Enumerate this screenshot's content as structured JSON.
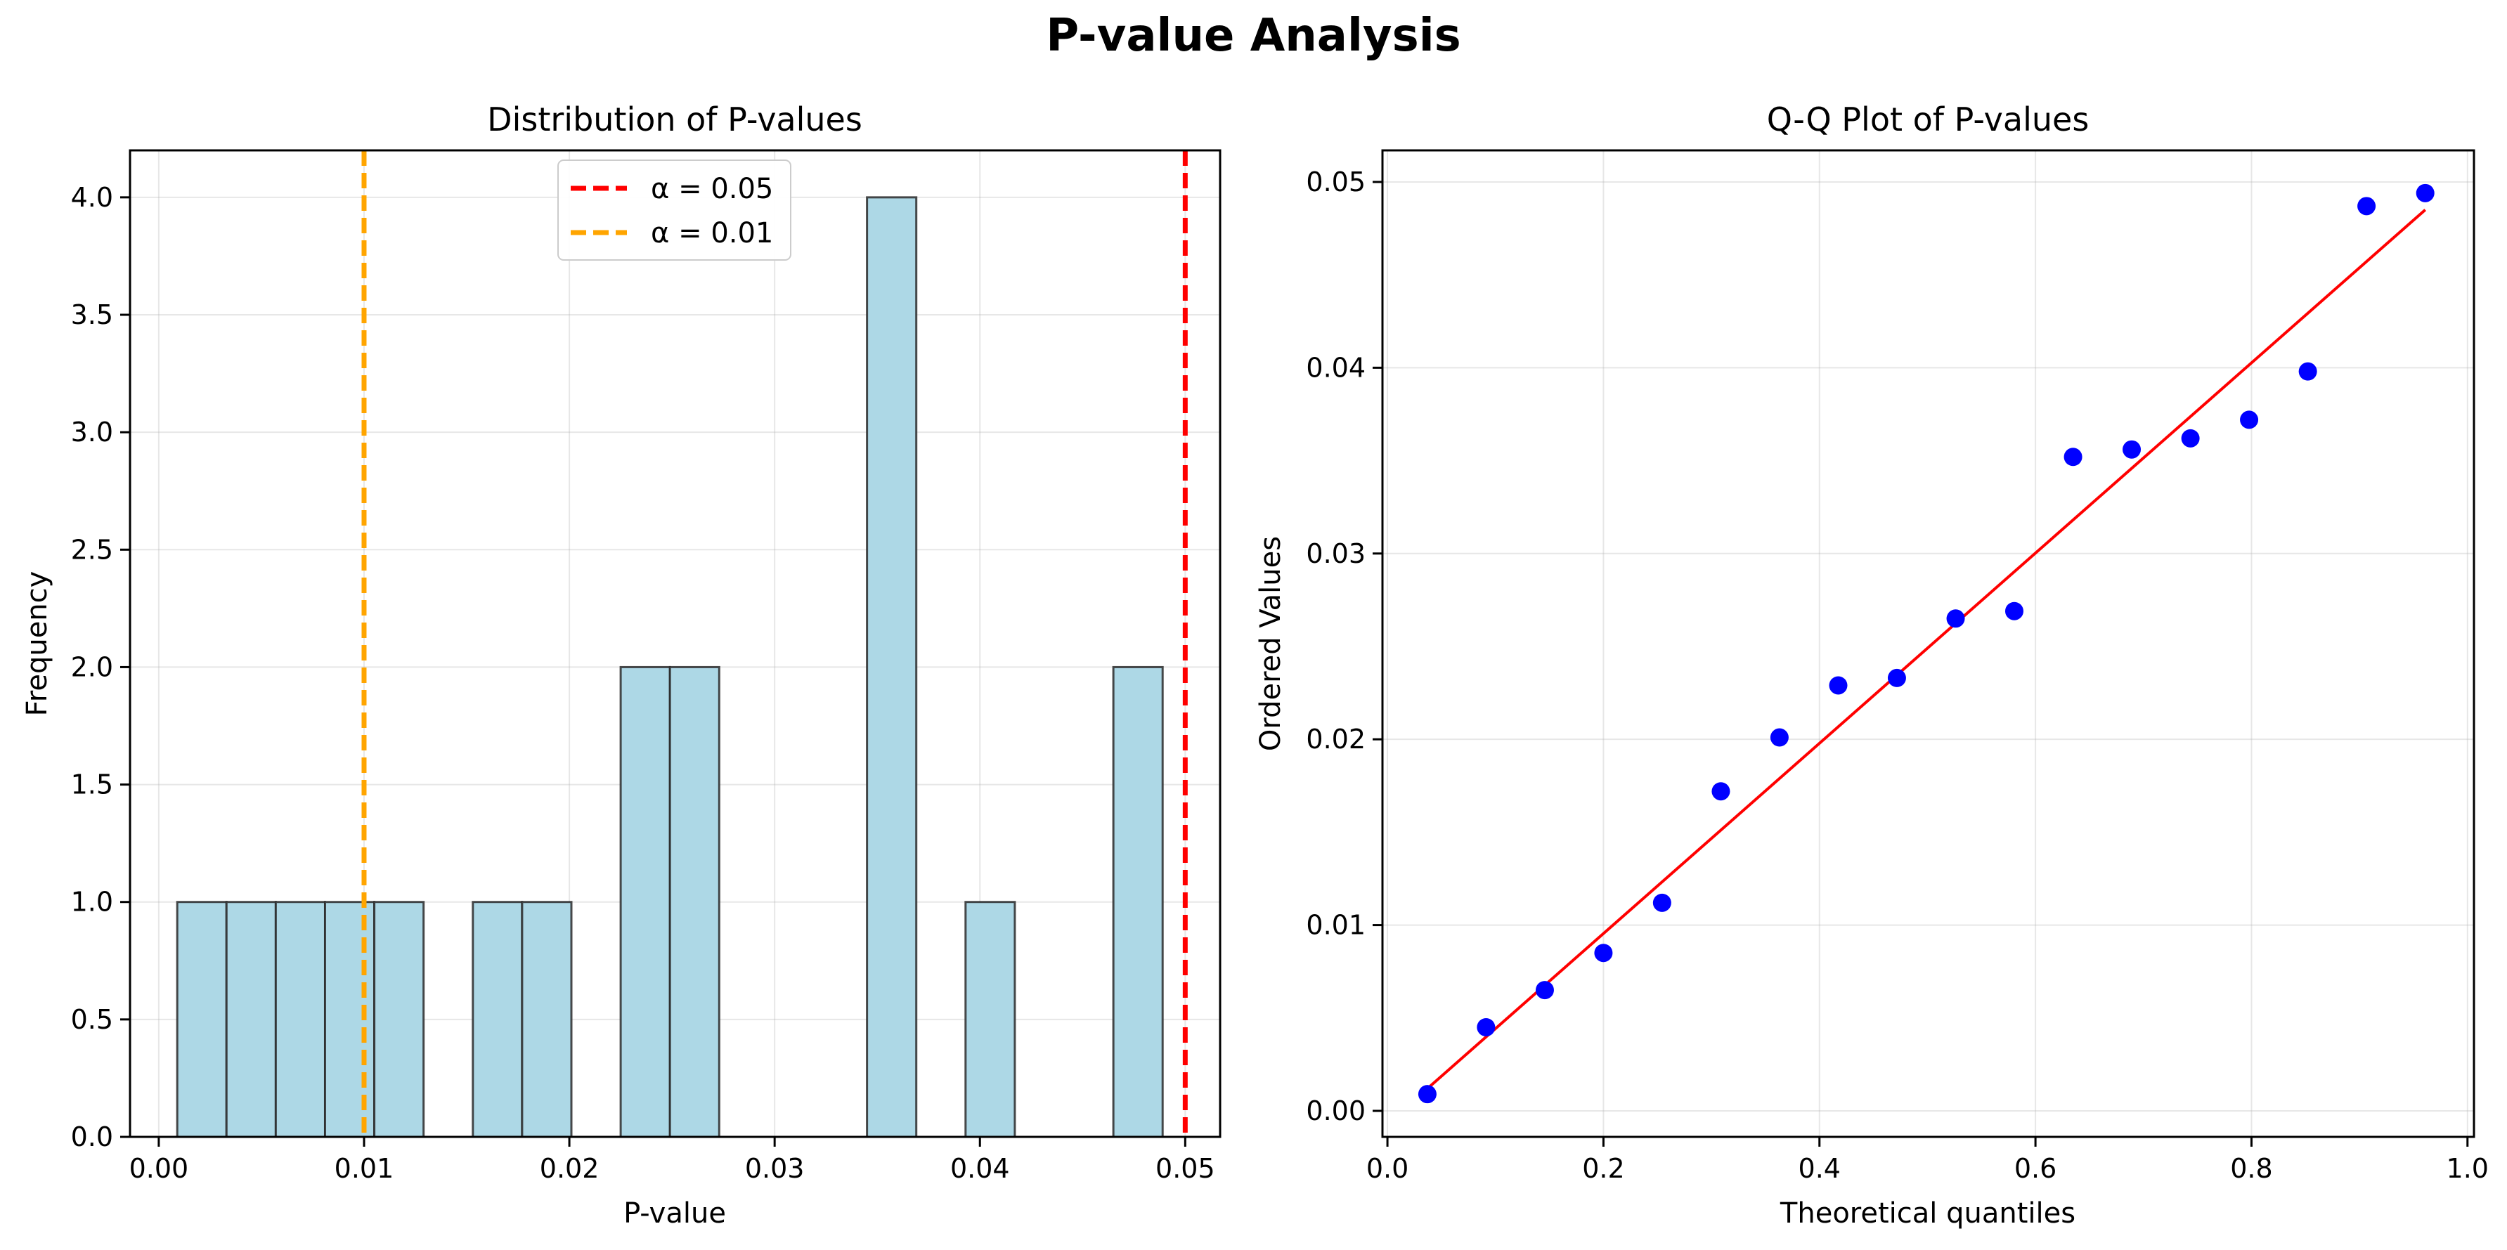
{
  "figure": {
    "title": "P-value Analysis"
  },
  "chart_data": [
    {
      "type": "bar",
      "subtype": "histogram",
      "title": "Distribution of P-values",
      "xlabel": "P-value",
      "ylabel": "Frequency",
      "xlim": [
        -0.0014,
        0.0517
      ],
      "ylim": [
        0,
        4.2
      ],
      "xticks": [
        0.0,
        0.01,
        0.02,
        0.03,
        0.04,
        0.05
      ],
      "xtick_labels": [
        "0.00",
        "0.01",
        "0.02",
        "0.03",
        "0.04",
        "0.05"
      ],
      "yticks": [
        0.0,
        0.5,
        1.0,
        1.5,
        2.0,
        2.5,
        3.0,
        3.5,
        4.0
      ],
      "ytick_labels": [
        "0.0",
        "0.5",
        "1.0",
        "1.5",
        "2.0",
        "2.5",
        "3.0",
        "3.5",
        "4.0"
      ],
      "bin_start": 0.0009,
      "bin_width": 0.0024,
      "values": [
        1,
        1,
        1,
        1,
        1,
        0,
        1,
        1,
        0,
        2,
        2,
        0,
        0,
        0,
        4,
        0,
        1,
        0,
        0,
        2
      ],
      "bar_color": "#add8e6",
      "edge_color": "#2a2a2a",
      "grid": true,
      "reference_lines": [
        {
          "label": "α = 0.05",
          "x": 0.05,
          "color": "#ff0000"
        },
        {
          "label": "α = 0.01",
          "x": 0.01,
          "color": "#ffa500"
        }
      ],
      "legend_position": "top-center"
    },
    {
      "type": "scatter",
      "title": "Q-Q Plot of P-values",
      "xlabel": "Theoretical quantiles",
      "ylabel": "Ordered Values",
      "xlim": [
        -0.0046,
        1.006
      ],
      "ylim": [
        -0.0014,
        0.0517
      ],
      "xticks": [
        0.0,
        0.2,
        0.4,
        0.6,
        0.8,
        1.0
      ],
      "xtick_labels": [
        "0.0",
        "0.2",
        "0.4",
        "0.6",
        "0.8",
        "1.0"
      ],
      "yticks": [
        0.0,
        0.01,
        0.02,
        0.03,
        0.04,
        0.05
      ],
      "ytick_labels": [
        "0.00",
        "0.01",
        "0.02",
        "0.03",
        "0.04",
        "0.05"
      ],
      "x": [
        0.037,
        0.0913,
        0.1457,
        0.2,
        0.2543,
        0.3087,
        0.363,
        0.4174,
        0.4717,
        0.5261,
        0.5804,
        0.6348,
        0.6891,
        0.7435,
        0.7978,
        0.8522,
        0.9065,
        0.9609
      ],
      "y": [
        0.0009,
        0.0045,
        0.0065,
        0.0085,
        0.0112,
        0.0172,
        0.0201,
        0.0229,
        0.0233,
        0.0265,
        0.0269,
        0.0352,
        0.0356,
        0.0362,
        0.0372,
        0.0398,
        0.0487,
        0.0494
      ],
      "point_color": "#0000ff",
      "fit_line": {
        "x": [
          0.037,
          0.9609
        ],
        "y": [
          0.0012,
          0.0485
        ],
        "color": "#ff0000"
      },
      "grid": true
    }
  ]
}
